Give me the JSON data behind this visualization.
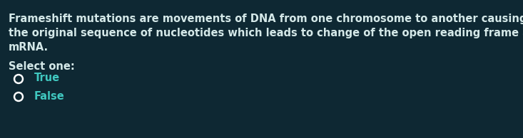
{
  "background_color": "#0e2833",
  "text_color": "#d4e8e8",
  "select_color": "#c8e0e0",
  "option_color": "#40c8c0",
  "line1": "Frameshift mutations are movements of DNA from one chromosome to another causing change in",
  "line2": "the original sequence of nucleotides which leads to change of the open reading frame at the",
  "line3": "mRNA.",
  "select_label": "Select one:",
  "options": [
    "True",
    "False"
  ],
  "font_size_para": 10.5,
  "font_size_select": 10.5,
  "font_size_options": 10.5,
  "radio_outer_color": "#ffffff",
  "radio_inner_color": "#0e2833",
  "figwidth": 7.33,
  "figheight": 1.94,
  "dpi": 100
}
